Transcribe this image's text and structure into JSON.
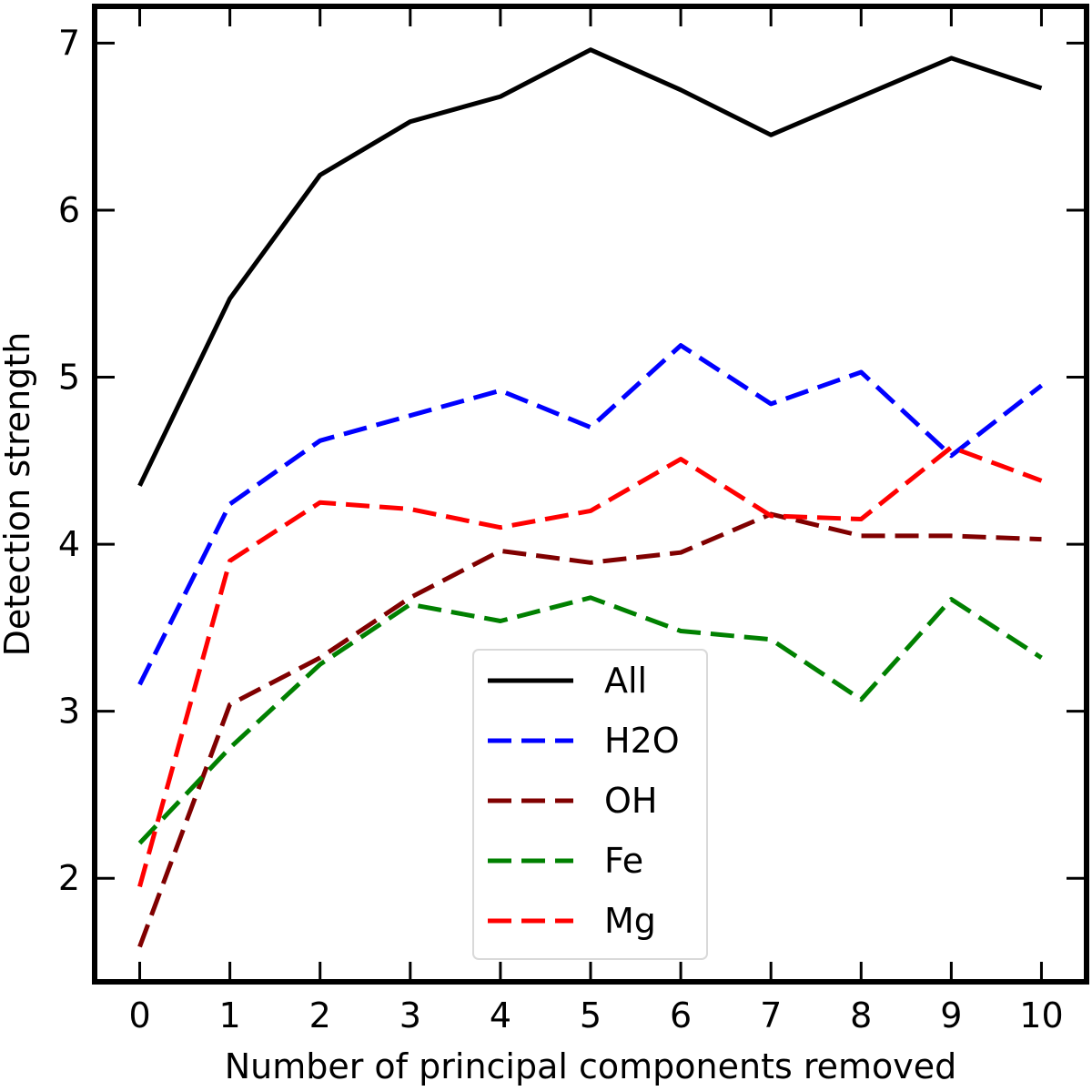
{
  "chart_data": {
    "type": "line",
    "title": "",
    "xlabel": "Number of principal components removed",
    "ylabel": "Detection strength",
    "xlim": [
      -0.5,
      10.5
    ],
    "ylim": [
      1.38,
      7.22
    ],
    "x": [
      0,
      1,
      2,
      3,
      4,
      5,
      6,
      7,
      8,
      9,
      10
    ],
    "x_ticks": [
      0,
      1,
      2,
      3,
      4,
      5,
      6,
      7,
      8,
      9,
      10
    ],
    "y_ticks": [
      2,
      3,
      4,
      5,
      6,
      7
    ],
    "grid": false,
    "legend_position": "lower-center",
    "series": [
      {
        "name": "All",
        "color": "#000000",
        "dash": "solid",
        "values": [
          4.35,
          5.47,
          6.21,
          6.53,
          6.68,
          6.96,
          6.72,
          6.45,
          6.68,
          6.91,
          6.73
        ]
      },
      {
        "name": "H2O",
        "color": "#0000ff",
        "dash": "dashed",
        "values": [
          3.16,
          4.24,
          4.62,
          4.77,
          4.92,
          4.7,
          5.19,
          4.84,
          5.03,
          4.53,
          4.95
        ]
      },
      {
        "name": "OH",
        "color": "#800000",
        "dash": "dashed",
        "values": [
          1.59,
          3.04,
          3.32,
          3.68,
          3.96,
          3.89,
          3.95,
          4.18,
          4.05,
          4.05,
          4.03
        ]
      },
      {
        "name": "Fe",
        "color": "#008000",
        "dash": "dashed",
        "values": [
          2.21,
          2.78,
          3.28,
          3.64,
          3.54,
          3.68,
          3.48,
          3.43,
          3.07,
          3.67,
          3.32
        ]
      },
      {
        "name": "Mg",
        "color": "#ff0000",
        "dash": "dashed",
        "values": [
          1.95,
          3.9,
          4.25,
          4.21,
          4.1,
          4.2,
          4.51,
          4.17,
          4.15,
          4.58,
          4.38
        ]
      }
    ]
  }
}
